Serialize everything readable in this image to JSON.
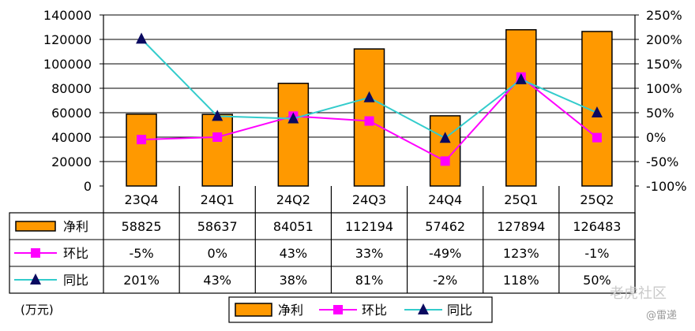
{
  "chart_data": {
    "type": "bar",
    "categories": [
      "23Q4",
      "24Q1",
      "24Q2",
      "24Q3",
      "24Q4",
      "25Q1",
      "25Q2"
    ],
    "series": [
      {
        "name": "净利",
        "kind": "bar",
        "axis": "left",
        "color": "#FF9900",
        "values": [
          58825,
          58637,
          84051,
          112194,
          57462,
          127894,
          126483
        ],
        "labels": [
          "58825",
          "58637",
          "84051",
          "112194",
          "57462",
          "127894",
          "126483"
        ]
      },
      {
        "name": "环比",
        "kind": "line",
        "axis": "right",
        "color": "#FF00FF",
        "marker": "square",
        "values": [
          -5,
          0,
          43,
          33,
          -49,
          123,
          -1
        ],
        "labels": [
          "-5%",
          "0%",
          "43%",
          "33%",
          "-49%",
          "123%",
          "-1%"
        ]
      },
      {
        "name": "同比",
        "kind": "line",
        "axis": "right",
        "color": "#33CCCC",
        "marker": "triangle",
        "values": [
          201,
          43,
          38,
          81,
          -2,
          118,
          50
        ],
        "labels": [
          "201%",
          "43%",
          "38%",
          "81%",
          "-2%",
          "118%",
          "50%"
        ]
      }
    ],
    "y_left": {
      "ylim": [
        0,
        140000
      ],
      "ticks": [
        "0",
        "20000",
        "40000",
        "60000",
        "80000",
        "100000",
        "120000",
        "140000"
      ]
    },
    "y_right": {
      "ylim": [
        -100,
        250
      ],
      "ticks": [
        "-100%",
        "-50%",
        "0%",
        "50%",
        "100%",
        "150%",
        "200%",
        "250%"
      ]
    },
    "grid": true,
    "legend": "bottom",
    "data_table": true
  },
  "unit_label": "(万元)",
  "watermark": {
    "text": "老虎社区",
    "sub": "@雷递"
  }
}
